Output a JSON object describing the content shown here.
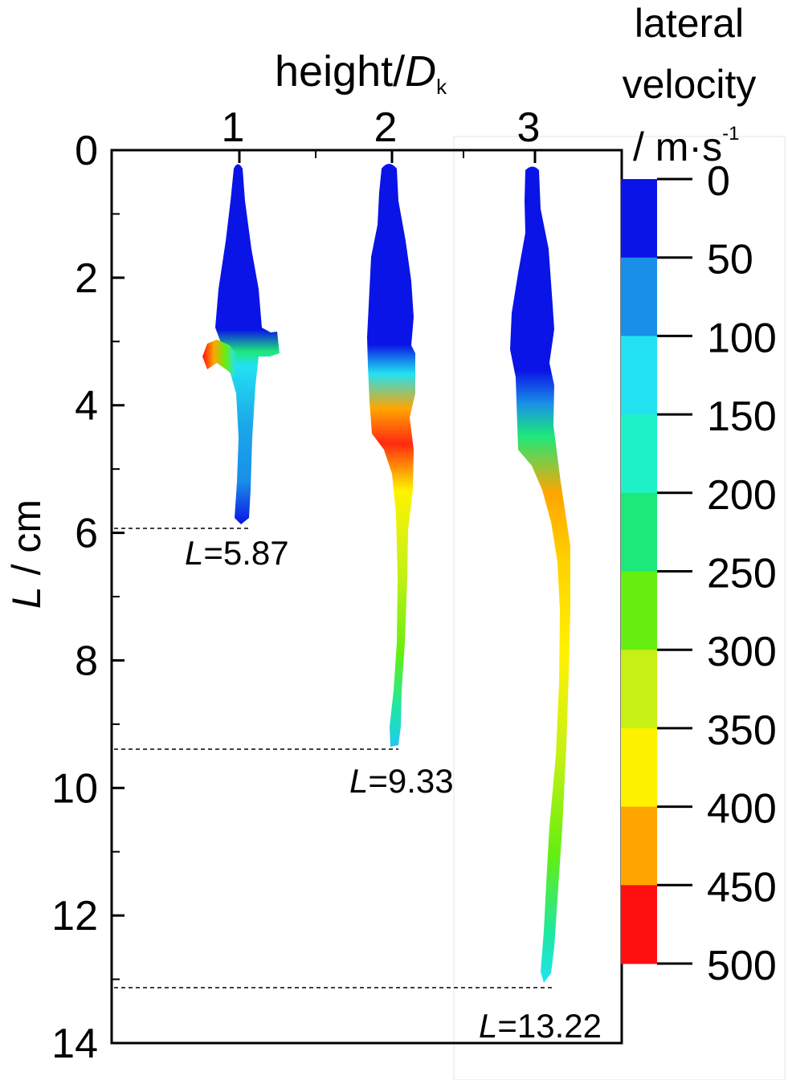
{
  "chart_data": {
    "type": "other",
    "top_axis": {
      "label_main": "height/",
      "label_italic": "D",
      "label_sub": "k",
      "categories": [
        "1",
        "2",
        "3"
      ]
    },
    "y_axis": {
      "label_italic": "L",
      "label_rest": " / cm",
      "ylim": [
        0,
        14
      ],
      "ticks": [
        "0",
        "2",
        "4",
        "6",
        "8",
        "10",
        "12",
        "14"
      ]
    },
    "jets": [
      {
        "category": "1",
        "length": 5.87,
        "label_italic": "L",
        "label_rest": "=5.87"
      },
      {
        "category": "2",
        "length": 9.33,
        "label_italic": "L",
        "label_rest": "=9.33"
      },
      {
        "category": "3",
        "length": 13.22,
        "label_italic": "L",
        "label_rest": "=13.22"
      }
    ],
    "colorbar": {
      "title_line1": "lateral",
      "title_line2": "velocity",
      "title_line3": "/ m·s",
      "title_sup": "-1",
      "ticks": [
        "0",
        "50",
        "100",
        "150",
        "200",
        "250",
        "300",
        "350",
        "400",
        "450",
        "500"
      ],
      "colors": [
        "#0a14e6",
        "#1a8fe8",
        "#22e2f2",
        "#1ff2c8",
        "#1de87a",
        "#66ee10",
        "#c6f016",
        "#fff200",
        "#ffa500",
        "#ff1010"
      ]
    }
  }
}
